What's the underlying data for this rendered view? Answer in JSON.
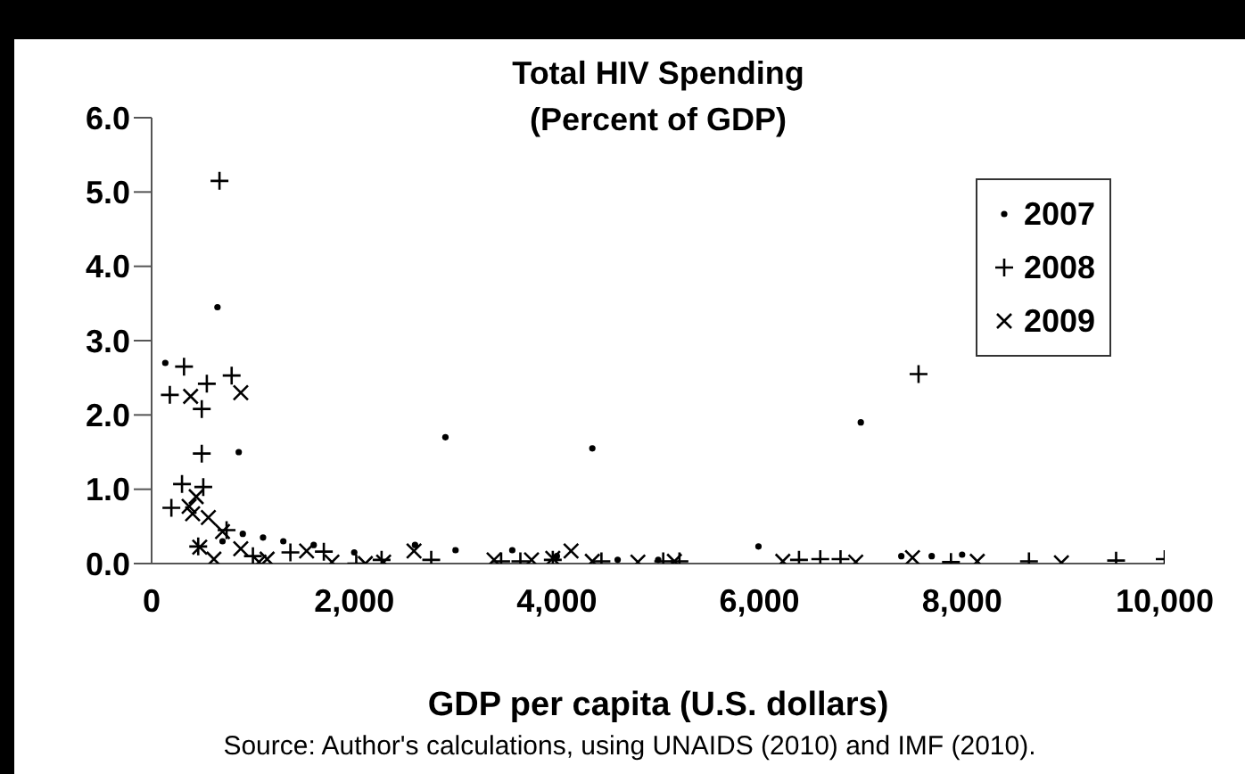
{
  "chart_data": {
    "type": "scatter",
    "title": "Total HIV Spending\n(Percent of GDP)",
    "xlabel": "GDP per capita (U.S. dollars)",
    "annotations": [
      "Source: Author's calculations, using UNAIDS (2010) and IMF (2010)."
    ],
    "xlim": [
      0,
      10000
    ],
    "ylim": [
      0,
      6
    ],
    "xticks": [
      {
        "value": 0,
        "label": "0"
      },
      {
        "value": 2000,
        "label": "2,000"
      },
      {
        "value": 4000,
        "label": "4,000"
      },
      {
        "value": 6000,
        "label": "6,000"
      },
      {
        "value": 8000,
        "label": "8,000"
      },
      {
        "value": 10000,
        "label": "10,000"
      }
    ],
    "yticks": [
      {
        "value": 0,
        "label": "0.0"
      },
      {
        "value": 1,
        "label": "1.0"
      },
      {
        "value": 2,
        "label": "2.0"
      },
      {
        "value": 3,
        "label": "3.0"
      },
      {
        "value": 4,
        "label": "4.0"
      },
      {
        "value": 5,
        "label": "5.0"
      },
      {
        "value": 6,
        "label": "6.0"
      }
    ],
    "legend": "top right",
    "series": [
      {
        "name": "2007",
        "color": "#000000",
        "marker": "circle",
        "x": [
          135,
          650,
          860,
          2900,
          4350,
          7000,
          5990,
          700,
          900,
          1100,
          1300,
          1600,
          2000,
          2600,
          3000,
          3560,
          4000,
          4600,
          5000,
          7400,
          7700,
          8000
        ],
        "values": [
          2.7,
          3.45,
          1.5,
          1.7,
          1.55,
          1.9,
          0.23,
          0.3,
          0.4,
          0.35,
          0.3,
          0.25,
          0.15,
          0.25,
          0.18,
          0.18,
          0.1,
          0.05,
          0.05,
          0.1,
          0.1,
          0.12
        ]
      },
      {
        "name": "2008",
        "color": "#000000",
        "marker": "plus",
        "x": [
          670,
          320,
          180,
          545,
          495,
          790,
          495,
          300,
          510,
          195,
          7570,
          460,
          740,
          1000,
          1370,
          1700,
          2020,
          2270,
          2760,
          3450,
          3640,
          3960,
          4440,
          5050,
          5210,
          6390,
          6600,
          6800,
          7890,
          8660,
          9520,
          10000
        ],
        "values": [
          5.15,
          2.65,
          2.27,
          2.42,
          2.08,
          2.53,
          1.48,
          1.07,
          1.03,
          0.75,
          2.55,
          0.23,
          0.45,
          0.1,
          0.15,
          0.16,
          0.0,
          0.05,
          0.05,
          0.03,
          0.03,
          0.05,
          0.03,
          0.03,
          0.03,
          0.05,
          0.06,
          0.06,
          0.02,
          0.03,
          0.04,
          0.06
        ]
      },
      {
        "name": "2009",
        "color": "#000000",
        "marker": "cross",
        "x": [
          385,
          880,
          440,
          370,
          405,
          560,
          475,
          700,
          615,
          880,
          1060,
          1140,
          1530,
          1780,
          2110,
          2290,
          2590,
          3380,
          3750,
          3960,
          4140,
          4350,
          4800,
          5160,
          6230,
          6950,
          7510,
          8150,
          8980
        ],
        "values": [
          2.25,
          2.3,
          0.9,
          0.77,
          0.67,
          0.62,
          0.22,
          0.43,
          0.06,
          0.2,
          0.02,
          0.06,
          0.17,
          0.02,
          0.0,
          0.02,
          0.17,
          0.05,
          0.05,
          0.07,
          0.17,
          0.03,
          0.02,
          0.03,
          0.03,
          0.02,
          0.08,
          0.03,
          0.01
        ]
      }
    ]
  }
}
